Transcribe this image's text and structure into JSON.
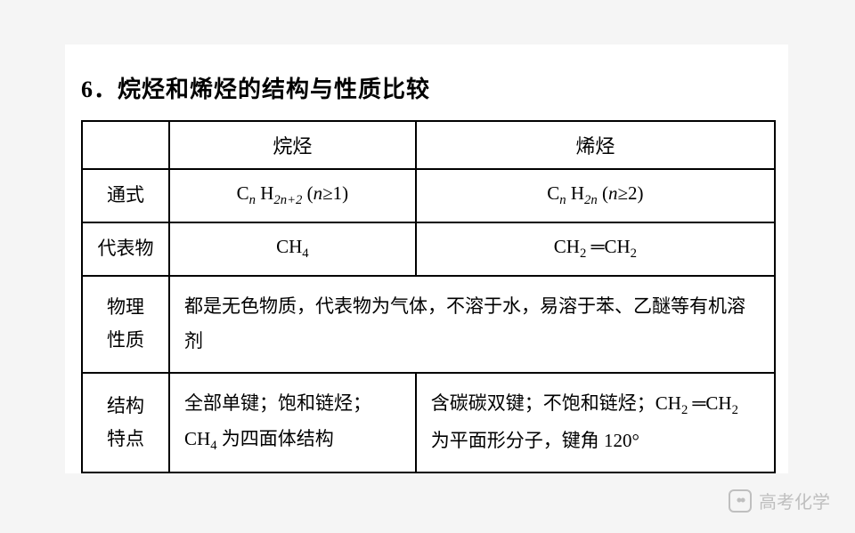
{
  "heading": "6．烷烃和烯烃的结构与性质比较",
  "table": {
    "col_headers": {
      "c1": "烷烃",
      "c2": "烯烃"
    },
    "rows": {
      "formula": {
        "label": "通式",
        "c1_html": "<span class='rm'>C<span class='ital sub'>n</span>&nbsp;H<span class='ital sub'>2n+2</span></span> (<span class='ital'>n</span>&ge;1)",
        "c2_html": "<span class='rm'>C<span class='ital sub'>n</span>&nbsp;H<span class='ital sub'>2n</span></span> (<span class='ital'>n</span>&ge;2)"
      },
      "rep": {
        "label": "代表物",
        "c1_html": "<span class='rm'>CH<span class='sub'>4</span></span>",
        "c2_html": "<span class='rm'>CH<span class='sub'>2</span>&nbsp;&#9552;CH<span class='sub'>2</span></span>"
      },
      "phys": {
        "label_l1": "物理",
        "label_l2": "性质",
        "merged_html": "都是无色物质，代表物为气体，不溶于水，易溶于苯、乙醚等有机溶剂"
      },
      "struct": {
        "label_l1": "结构",
        "label_l2": "特点",
        "c1_html": "全部单键；饱和链烃；<span class='rm'>CH<span class='sub'>4</span></span> 为四面体结构",
        "c2_html": "含碳碳双键；不饱和链烃；<span class='rm'>CH<span class='sub'>2</span>&nbsp;&#9552;CH<span class='sub'>2</span></span> 为平面形分子，键角 120°"
      }
    }
  },
  "watermark": {
    "text": "高考化学"
  }
}
